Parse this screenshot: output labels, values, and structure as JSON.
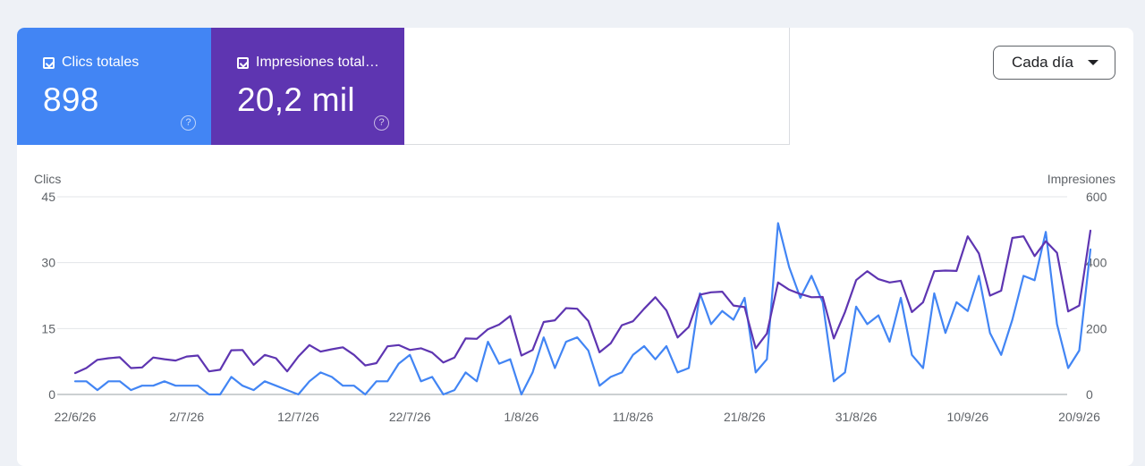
{
  "metrics": {
    "clicks": {
      "label": "Clics totales",
      "value": "898",
      "help": "?"
    },
    "impressions": {
      "label": "Impresiones total…",
      "value": "20,2 mil",
      "help": "?"
    }
  },
  "granularity": {
    "label": "Cada día"
  },
  "colors": {
    "clicks": "#4285f4",
    "impressions": "#5e35b1"
  },
  "chart_data": {
    "type": "line",
    "left_axis": {
      "label": "Clics",
      "ticks": [
        "0",
        "15",
        "30",
        "45"
      ],
      "range": [
        0,
        45
      ]
    },
    "right_axis": {
      "label": "Impresiones",
      "ticks": [
        "0",
        "200",
        "400",
        "600"
      ],
      "range": [
        0,
        600
      ]
    },
    "x_labels": [
      "22/6/26",
      "2/7/26",
      "12/7/26",
      "22/7/26",
      "1/8/26",
      "11/8/26",
      "21/8/26",
      "31/8/26",
      "10/9/26",
      "20/9/26"
    ],
    "grid": true,
    "series": [
      {
        "key": "clics",
        "axis": "left",
        "color": "#4285f4",
        "values": [
          3,
          3,
          1,
          3,
          3,
          1,
          2,
          2,
          3,
          2,
          2,
          2,
          0,
          0,
          4,
          2,
          1,
          3,
          2,
          1,
          0,
          3,
          5,
          4,
          2,
          2,
          0,
          3,
          3,
          7,
          9,
          3,
          4,
          0,
          1,
          5,
          3,
          12,
          7,
          8,
          0,
          5,
          13,
          6,
          12,
          13,
          10,
          2,
          4,
          5,
          9,
          11,
          8,
          11,
          5,
          6,
          23,
          16,
          19,
          17,
          22,
          5,
          8,
          39,
          29,
          22,
          27,
          21,
          3,
          5,
          20,
          16,
          18,
          12,
          22,
          9,
          6,
          23,
          14,
          21,
          19,
          27,
          14,
          9,
          17,
          27,
          26,
          37,
          16,
          6,
          10,
          33
        ]
      },
      {
        "key": "impresiones",
        "axis": "right",
        "color": "#5e35b1",
        "values": [
          65,
          80,
          105,
          110,
          113,
          80,
          82,
          112,
          107,
          103,
          115,
          118,
          70,
          75,
          134,
          135,
          90,
          120,
          110,
          70,
          115,
          150,
          130,
          137,
          143,
          120,
          88,
          95,
          146,
          150,
          135,
          140,
          127,
          97,
          112,
          170,
          169,
          198,
          212,
          238,
          118,
          135,
          220,
          225,
          262,
          260,
          223,
          128,
          155,
          210,
          222,
          260,
          295,
          255,
          173,
          205,
          303,
          310,
          312,
          270,
          265,
          140,
          185,
          340,
          318,
          305,
          295,
          296,
          170,
          250,
          347,
          374,
          350,
          340,
          345,
          250,
          280,
          374,
          376,
          375,
          480,
          428,
          300,
          315,
          475,
          480,
          420,
          465,
          430,
          252,
          270,
          497
        ]
      }
    ]
  }
}
